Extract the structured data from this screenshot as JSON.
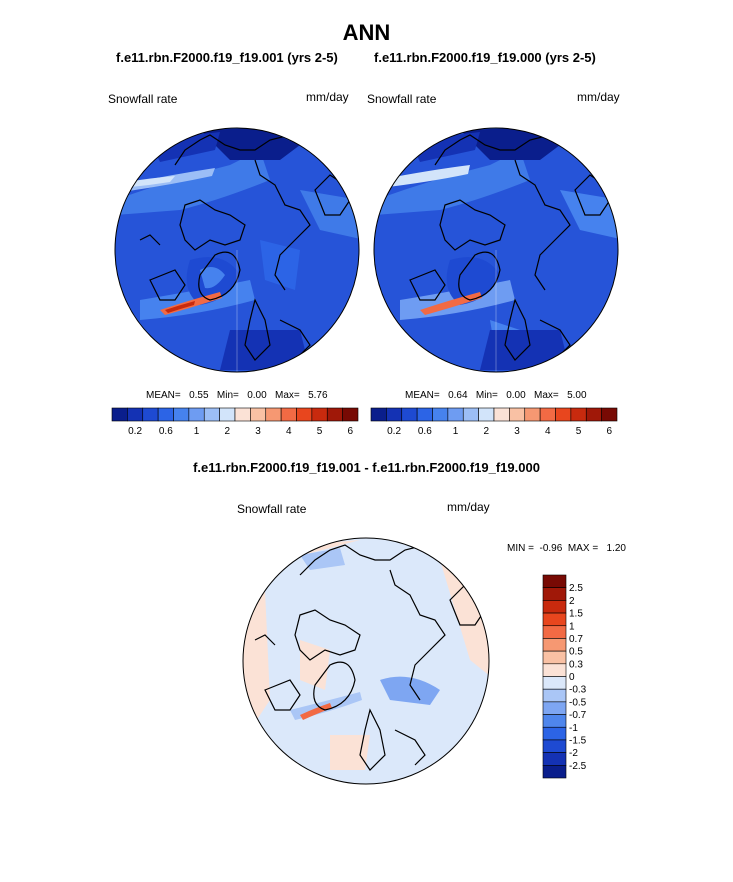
{
  "title": "ANN",
  "left_case_title": "f.e11.rbn.F2000.f19_f19.001 (yrs 2-5)",
  "right_case_title": "f.e11.rbn.F2000.f19_f19.000 (yrs 2-5)",
  "diff_title": "f.e11.rbn.F2000.f19_f19.001 - f.e11.rbn.F2000.f19_f19.000",
  "panels": {
    "left": {
      "variable": "Snowfall rate",
      "units": "mm/day",
      "stats": {
        "mean_label": "MEAN=",
        "mean": "0.55",
        "min_label": "Min=",
        "min": "0.00",
        "max_label": "Max=",
        "max": "5.76"
      }
    },
    "right": {
      "variable": "Snowfall rate",
      "units": "mm/day",
      "stats": {
        "mean_label": "MEAN=",
        "mean": "0.64",
        "min_label": "Min=",
        "min": "0.00",
        "max_label": "Max=",
        "max": "5.00"
      }
    },
    "diff": {
      "variable": "Snowfall rate",
      "units": "mm/day",
      "stats": {
        "min_label": "MIN =",
        "min": "-0.96",
        "max_label": "MAX =",
        "max": "1.20"
      }
    }
  },
  "colorbar_abs": {
    "labels": [
      "0.2",
      "0.6",
      "1",
      "2",
      "3",
      "4",
      "5",
      "6"
    ],
    "colors": [
      "#0a1e8c",
      "#1432b4",
      "#1e4ad2",
      "#2c64e6",
      "#4682ee",
      "#6e9cf2",
      "#9cbef6",
      "#d2e4fa",
      "#fbe2d6",
      "#f9c1a4",
      "#f69872",
      "#f26a44",
      "#e8461e",
      "#c82a0e",
      "#a01808",
      "#780a04"
    ]
  },
  "colorbar_diff": {
    "labels": [
      "2.5",
      "2",
      "1.5",
      "1",
      "0.7",
      "0.5",
      "0.3",
      "0",
      "-0.3",
      "-0.5",
      "-0.7",
      "-1",
      "-1.5",
      "-2",
      "-2.5"
    ],
    "colors": [
      "#780a04",
      "#a01808",
      "#c82a0e",
      "#e8461e",
      "#f26a44",
      "#f69872",
      "#f9c1a4",
      "#fbe2d6",
      "#dbe8fa",
      "#aac6f6",
      "#7ea6f2",
      "#4f86ec",
      "#2c64e6",
      "#1e4ad2",
      "#1432b4",
      "#0a1e8c"
    ]
  },
  "colors": {
    "land_outline": "#000000",
    "abs_background": "#2654d8",
    "diff_background": "#dbe8fa"
  }
}
